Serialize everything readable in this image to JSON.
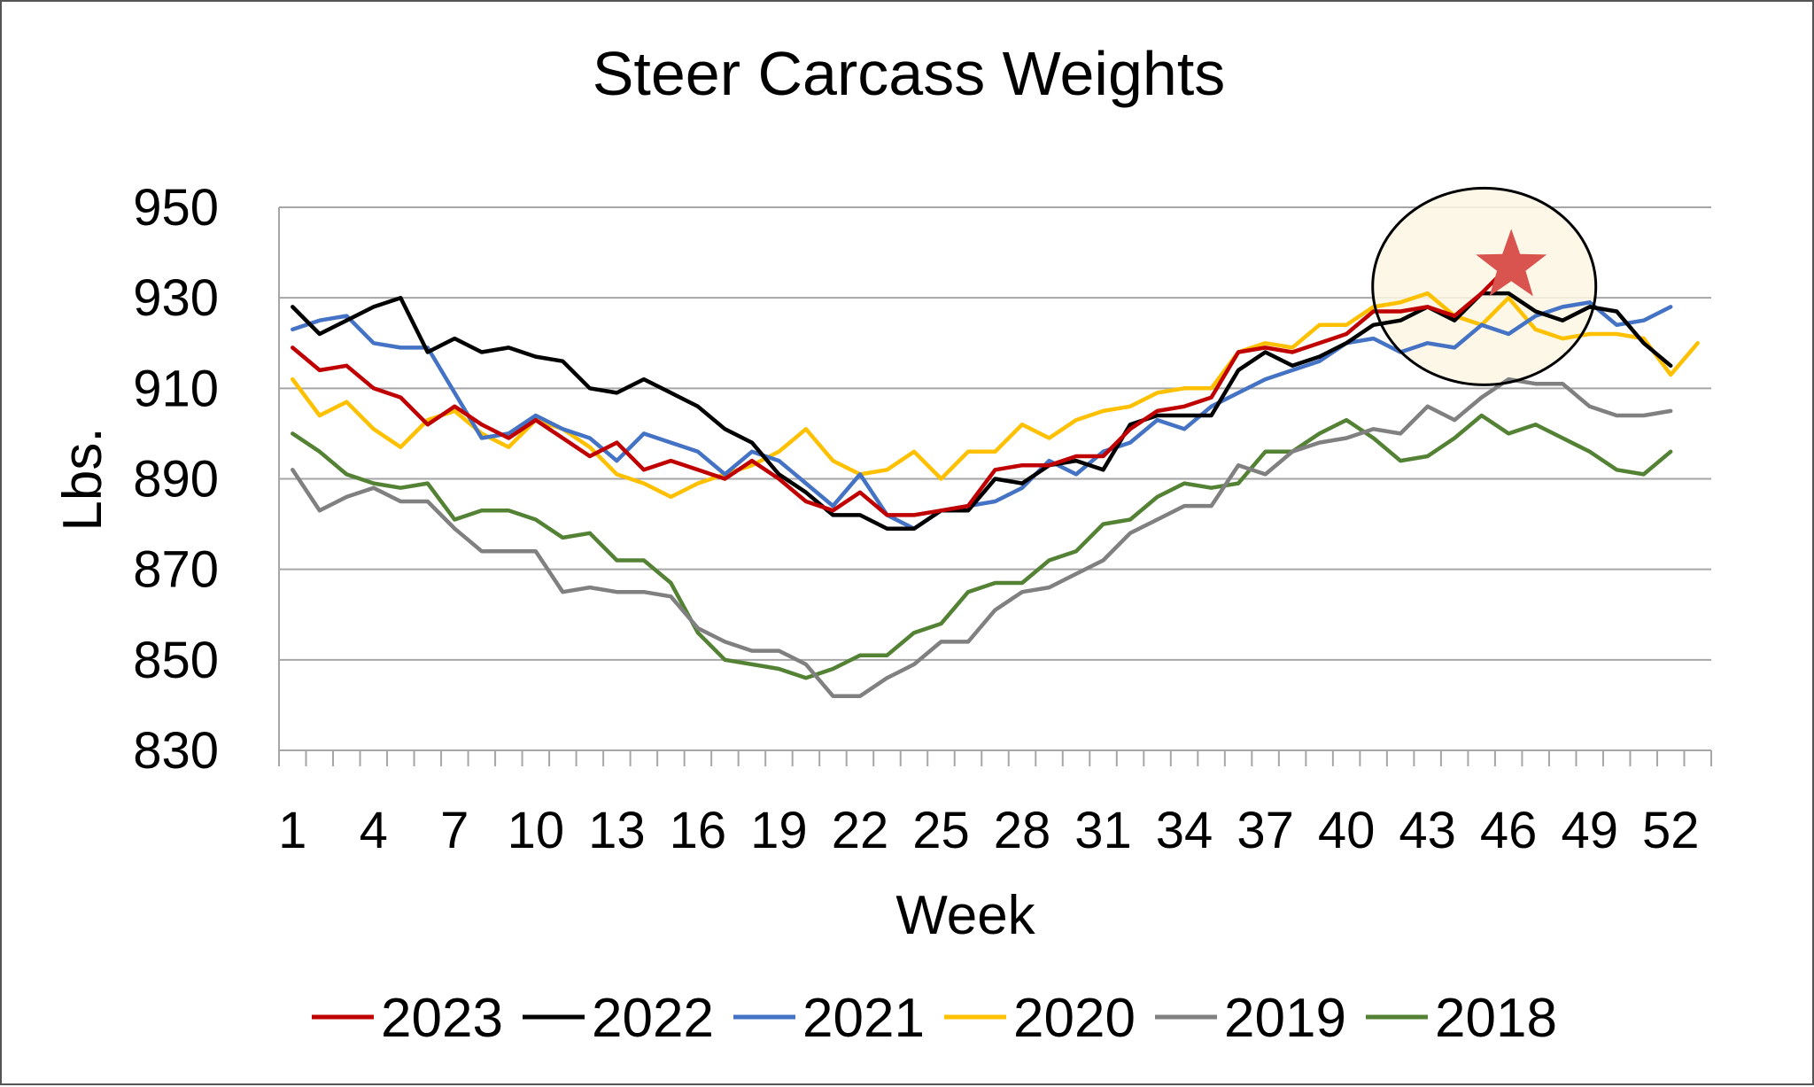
{
  "chart_data": {
    "type": "line",
    "title": "Steer Carcass Weights",
    "xlabel": "Week",
    "ylabel": "Lbs.",
    "xlim": [
      1,
      53
    ],
    "ylim": [
      830,
      950
    ],
    "yticks": [
      830,
      850,
      870,
      890,
      910,
      930,
      950
    ],
    "xticks": [
      1,
      4,
      7,
      10,
      13,
      16,
      19,
      22,
      25,
      28,
      31,
      34,
      37,
      40,
      43,
      46,
      49,
      52
    ],
    "grid": "horizontal",
    "legend": "bottom",
    "highlight": {
      "center": [
        45.1,
        932.5
      ],
      "shape": "circle",
      "fill": "#fdf6e3",
      "marker": "star",
      "marker_color": "#d9534f",
      "marker_point": [
        46.1,
        937
      ]
    },
    "series": [
      {
        "name": "2023",
        "color": "#c00000",
        "values": [
          919,
          914,
          915,
          910,
          908,
          902,
          906,
          902,
          899,
          903,
          899,
          895,
          898,
          892,
          894,
          892,
          890,
          894,
          890,
          885,
          883,
          887,
          882,
          882,
          883,
          884,
          892,
          893,
          893,
          895,
          895,
          901,
          905,
          906,
          908,
          918,
          919,
          918,
          920,
          922,
          927,
          927,
          928,
          926,
          931,
          937
        ]
      },
      {
        "name": "2022",
        "color": "#000000",
        "values": [
          928,
          922,
          925,
          928,
          930,
          918,
          921,
          918,
          919,
          917,
          916,
          910,
          909,
          912,
          909,
          906,
          901,
          898,
          891,
          887,
          882,
          882,
          879,
          879,
          883,
          883,
          890,
          889,
          893,
          894,
          892,
          902,
          904,
          904,
          904,
          914,
          918,
          915,
          917,
          920,
          924,
          925,
          928,
          925,
          931,
          931,
          927,
          925,
          928,
          927,
          920,
          915
        ]
      },
      {
        "name": "2021",
        "color": "#4472c4",
        "values": [
          923,
          925,
          926,
          920,
          919,
          919,
          909,
          899,
          900,
          904,
          901,
          899,
          894,
          900,
          898,
          896,
          891,
          896,
          894,
          889,
          884,
          891,
          882,
          879,
          883,
          884,
          885,
          888,
          894,
          891,
          896,
          898,
          903,
          901,
          906,
          909,
          912,
          914,
          916,
          920,
          921,
          918,
          920,
          919,
          924,
          922,
          926,
          928,
          929,
          924,
          925,
          928
        ]
      },
      {
        "name": "2020",
        "color": "#ffc000",
        "values": [
          912,
          904,
          907,
          901,
          897,
          903,
          905,
          900,
          897,
          903,
          901,
          897,
          891,
          889,
          886,
          889,
          891,
          893,
          896,
          901,
          894,
          891,
          892,
          896,
          890,
          896,
          896,
          902,
          899,
          903,
          905,
          906,
          909,
          910,
          910,
          918,
          920,
          919,
          924,
          924,
          928,
          929,
          931,
          926,
          924,
          930,
          923,
          921,
          922,
          922,
          921,
          913,
          920
        ]
      },
      {
        "name": "2019",
        "color": "#808080",
        "values": [
          892,
          883,
          886,
          888,
          885,
          885,
          879,
          874,
          874,
          874,
          865,
          866,
          865,
          865,
          864,
          857,
          854,
          852,
          852,
          849,
          842,
          842,
          846,
          849,
          854,
          854,
          861,
          865,
          866,
          869,
          872,
          878,
          881,
          884,
          884,
          893,
          891,
          896,
          898,
          899,
          901,
          900,
          906,
          903,
          908,
          912,
          911,
          911,
          906,
          904,
          904,
          905
        ]
      },
      {
        "name": "2018",
        "color": "#548235",
        "values": [
          900,
          896,
          891,
          889,
          888,
          889,
          881,
          883,
          883,
          881,
          877,
          878,
          872,
          872,
          867,
          856,
          850,
          849,
          848,
          846,
          848,
          851,
          851,
          856,
          858,
          865,
          867,
          867,
          872,
          874,
          880,
          881,
          886,
          889,
          888,
          889,
          896,
          896,
          900,
          903,
          899,
          894,
          895,
          899,
          904,
          900,
          902,
          899,
          896,
          892,
          891,
          896
        ]
      }
    ]
  }
}
